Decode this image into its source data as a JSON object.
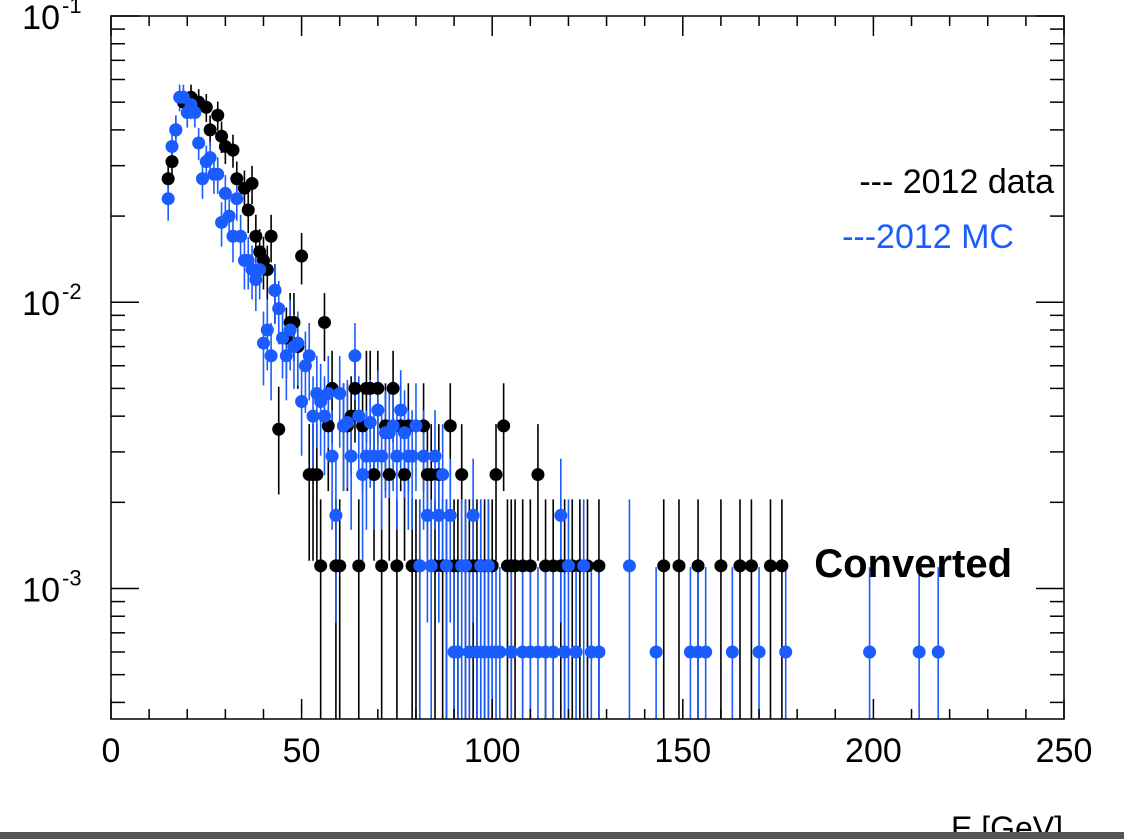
{
  "chart_data": {
    "type": "scatter",
    "title": "",
    "xlabel": "E [GeV]",
    "ylabel": "",
    "xlim": [
      0,
      250
    ],
    "ylim": [
      0.00035,
      0.1
    ],
    "log_y": true,
    "grid": false,
    "x_ticks": [
      "0",
      "50",
      "100",
      "150",
      "200",
      "250"
    ],
    "y_ticks": [
      {
        "value": 0.1,
        "base": "10",
        "exp": "-1"
      },
      {
        "value": 0.01,
        "base": "10",
        "exp": "-2"
      },
      {
        "value": 0.001,
        "base": "10",
        "exp": "-3"
      }
    ],
    "legend": [
      {
        "label": "--- 2012 data",
        "color": "#000000"
      },
      {
        "label": "---2012 MC",
        "color": "#1a5cff"
      }
    ],
    "annotation": "Converted",
    "series": [
      {
        "color": "#000000",
        "points": [
          [
            15,
            0.027
          ],
          [
            16,
            0.031
          ],
          [
            17,
            0.04
          ],
          [
            19,
            0.05
          ],
          [
            21,
            0.052
          ],
          [
            23,
            0.05
          ],
          [
            25,
            0.048
          ],
          [
            26,
            0.04
          ],
          [
            28,
            0.045
          ],
          [
            29,
            0.038
          ],
          [
            30,
            0.035
          ],
          [
            32,
            0.034
          ],
          [
            33,
            0.027
          ],
          [
            35,
            0.025
          ],
          [
            36,
            0.021
          ],
          [
            37,
            0.026
          ],
          [
            38,
            0.017
          ],
          [
            39,
            0.015
          ],
          [
            40,
            0.014
          ],
          [
            41,
            0.013
          ],
          [
            42,
            0.017
          ],
          [
            43,
            0.011
          ],
          [
            44,
            0.0036
          ],
          [
            46,
            0.0075
          ],
          [
            47,
            0.0085
          ],
          [
            48,
            0.0085
          ],
          [
            49,
            0.007
          ],
          [
            50,
            0.0145
          ],
          [
            52,
            0.0025
          ],
          [
            53,
            0.0025
          ],
          [
            54,
            0.0025
          ],
          [
            55,
            0.0012
          ],
          [
            56,
            0.0085
          ],
          [
            57,
            0.0037
          ],
          [
            58,
            0.005
          ],
          [
            59,
            0.0012
          ],
          [
            60,
            0.0012
          ],
          [
            61,
            0.0037
          ],
          [
            62,
            0.0037
          ],
          [
            63,
            0.004
          ],
          [
            64,
            0.005
          ],
          [
            65,
            0.0012
          ],
          [
            66,
            0.0037
          ],
          [
            67,
            0.005
          ],
          [
            68,
            0.005
          ],
          [
            69,
            0.0025
          ],
          [
            70,
            0.005
          ],
          [
            71,
            0.0012
          ],
          [
            72,
            0.0037
          ],
          [
            73,
            0.0025
          ],
          [
            74,
            0.005
          ],
          [
            75,
            0.0012
          ],
          [
            76,
            0.0037
          ],
          [
            77,
            0.0025
          ],
          [
            78,
            0.0037
          ],
          [
            79,
            0.0012
          ],
          [
            80,
            0.0012
          ],
          [
            81,
            0.0012
          ],
          [
            82,
            0.0037
          ],
          [
            83,
            0.0025
          ],
          [
            84,
            0.0025
          ],
          [
            85,
            0.0012
          ],
          [
            86,
            0.0025
          ],
          [
            87,
            0.0012
          ],
          [
            88,
            0.0012
          ],
          [
            89,
            0.0037
          ],
          [
            90,
            0.0012
          ],
          [
            91,
            0.0012
          ],
          [
            92,
            0.0025
          ],
          [
            93,
            0.0012
          ],
          [
            94,
            0.0012
          ],
          [
            95,
            0.0012
          ],
          [
            96,
            0.0012
          ],
          [
            97,
            0.0012
          ],
          [
            98,
            0.0012
          ],
          [
            99,
            0.0012
          ],
          [
            100,
            0.0012
          ],
          [
            101,
            0.0025
          ],
          [
            103,
            0.0037
          ],
          [
            104,
            0.0012
          ],
          [
            105,
            0.0012
          ],
          [
            106,
            0.0012
          ],
          [
            108,
            0.0012
          ],
          [
            110,
            0.0012
          ],
          [
            112,
            0.0025
          ],
          [
            114,
            0.0012
          ],
          [
            116,
            0.0012
          ],
          [
            118,
            0.0012
          ],
          [
            119,
            0.0012
          ],
          [
            121,
            0.0012
          ],
          [
            123,
            0.0012
          ],
          [
            125,
            0.0012
          ],
          [
            128,
            0.0012
          ],
          [
            145,
            0.0012
          ],
          [
            149,
            0.0012
          ],
          [
            154,
            0.0012
          ],
          [
            160,
            0.0012
          ],
          [
            165,
            0.0012
          ],
          [
            168,
            0.0012
          ],
          [
            173,
            0.0012
          ],
          [
            176,
            0.0012
          ]
        ]
      },
      {
        "color": "#1a5cff",
        "points": [
          [
            15,
            0.023
          ],
          [
            16,
            0.035
          ],
          [
            17,
            0.04
          ],
          [
            18,
            0.052
          ],
          [
            19,
            0.052
          ],
          [
            20,
            0.046
          ],
          [
            21,
            0.049
          ],
          [
            22,
            0.046
          ],
          [
            23,
            0.036
          ],
          [
            24,
            0.027
          ],
          [
            25,
            0.031
          ],
          [
            26,
            0.032
          ],
          [
            27,
            0.028
          ],
          [
            28,
            0.028
          ],
          [
            29,
            0.019
          ],
          [
            30,
            0.024
          ],
          [
            31,
            0.02
          ],
          [
            32,
            0.017
          ],
          [
            33,
            0.023
          ],
          [
            34,
            0.017
          ],
          [
            35,
            0.014
          ],
          [
            36,
            0.014
          ],
          [
            37,
            0.013
          ],
          [
            38,
            0.012
          ],
          [
            39,
            0.013
          ],
          [
            40,
            0.0072
          ],
          [
            41,
            0.008
          ],
          [
            42,
            0.0065
          ],
          [
            43,
            0.011
          ],
          [
            44,
            0.0095
          ],
          [
            45,
            0.0075
          ],
          [
            46,
            0.0065
          ],
          [
            47,
            0.008
          ],
          [
            48,
            0.007
          ],
          [
            49,
            0.0072
          ],
          [
            50,
            0.0045
          ],
          [
            51,
            0.006
          ],
          [
            52,
            0.0065
          ],
          [
            53,
            0.004
          ],
          [
            54,
            0.0048
          ],
          [
            55,
            0.0045
          ],
          [
            56,
            0.004
          ],
          [
            57,
            0.0048
          ],
          [
            58,
            0.0029
          ],
          [
            59,
            0.0018
          ],
          [
            60,
            0.0048
          ],
          [
            61,
            0.0037
          ],
          [
            62,
            0.0038
          ],
          [
            63,
            0.0029
          ],
          [
            64,
            0.0065
          ],
          [
            65,
            0.004
          ],
          [
            66,
            0.0025
          ],
          [
            67,
            0.0029
          ],
          [
            68,
            0.0038
          ],
          [
            69,
            0.0029
          ],
          [
            70,
            0.0042
          ],
          [
            71,
            0.0029
          ],
          [
            72,
            0.0035
          ],
          [
            73,
            0.0035
          ],
          [
            74,
            0.0037
          ],
          [
            75,
            0.0029
          ],
          [
            76,
            0.0042
          ],
          [
            77,
            0.0035
          ],
          [
            78,
            0.0029
          ],
          [
            79,
            0.0029
          ],
          [
            80,
            0.0037
          ],
          [
            81,
            0.0012
          ],
          [
            82,
            0.0029
          ],
          [
            83,
            0.0018
          ],
          [
            84,
            0.0012
          ],
          [
            85,
            0.0029
          ],
          [
            86,
            0.0018
          ],
          [
            87,
            0.0025
          ],
          [
            88,
            0.0012
          ],
          [
            89,
            0.0018
          ],
          [
            90,
            0.0006
          ],
          [
            91,
            0.0006
          ],
          [
            92,
            0.0012
          ],
          [
            93,
            0.0012
          ],
          [
            94,
            0.0006
          ],
          [
            95,
            0.0018
          ],
          [
            96,
            0.0006
          ],
          [
            97,
            0.0012
          ],
          [
            98,
            0.0006
          ],
          [
            99,
            0.0012
          ],
          [
            100,
            0.0006
          ],
          [
            101,
            0.0006
          ],
          [
            102,
            0.0006
          ],
          [
            105,
            0.0006
          ],
          [
            108,
            0.0006
          ],
          [
            110,
            0.0006
          ],
          [
            112,
            0.0006
          ],
          [
            114,
            0.0006
          ],
          [
            116,
            0.0006
          ],
          [
            118,
            0.0018
          ],
          [
            119,
            0.0006
          ],
          [
            120,
            0.0012
          ],
          [
            122,
            0.0006
          ],
          [
            124,
            0.0012
          ],
          [
            126,
            0.0006
          ],
          [
            128,
            0.0006
          ],
          [
            136,
            0.0012
          ],
          [
            143,
            0.0006
          ],
          [
            152,
            0.0006
          ],
          [
            154,
            0.0006
          ],
          [
            156,
            0.0006
          ],
          [
            163,
            0.0006
          ],
          [
            170,
            0.0006
          ],
          [
            177,
            0.0006
          ],
          [
            199,
            0.0006
          ],
          [
            212,
            0.0006
          ],
          [
            217,
            0.0006
          ]
        ]
      }
    ]
  }
}
